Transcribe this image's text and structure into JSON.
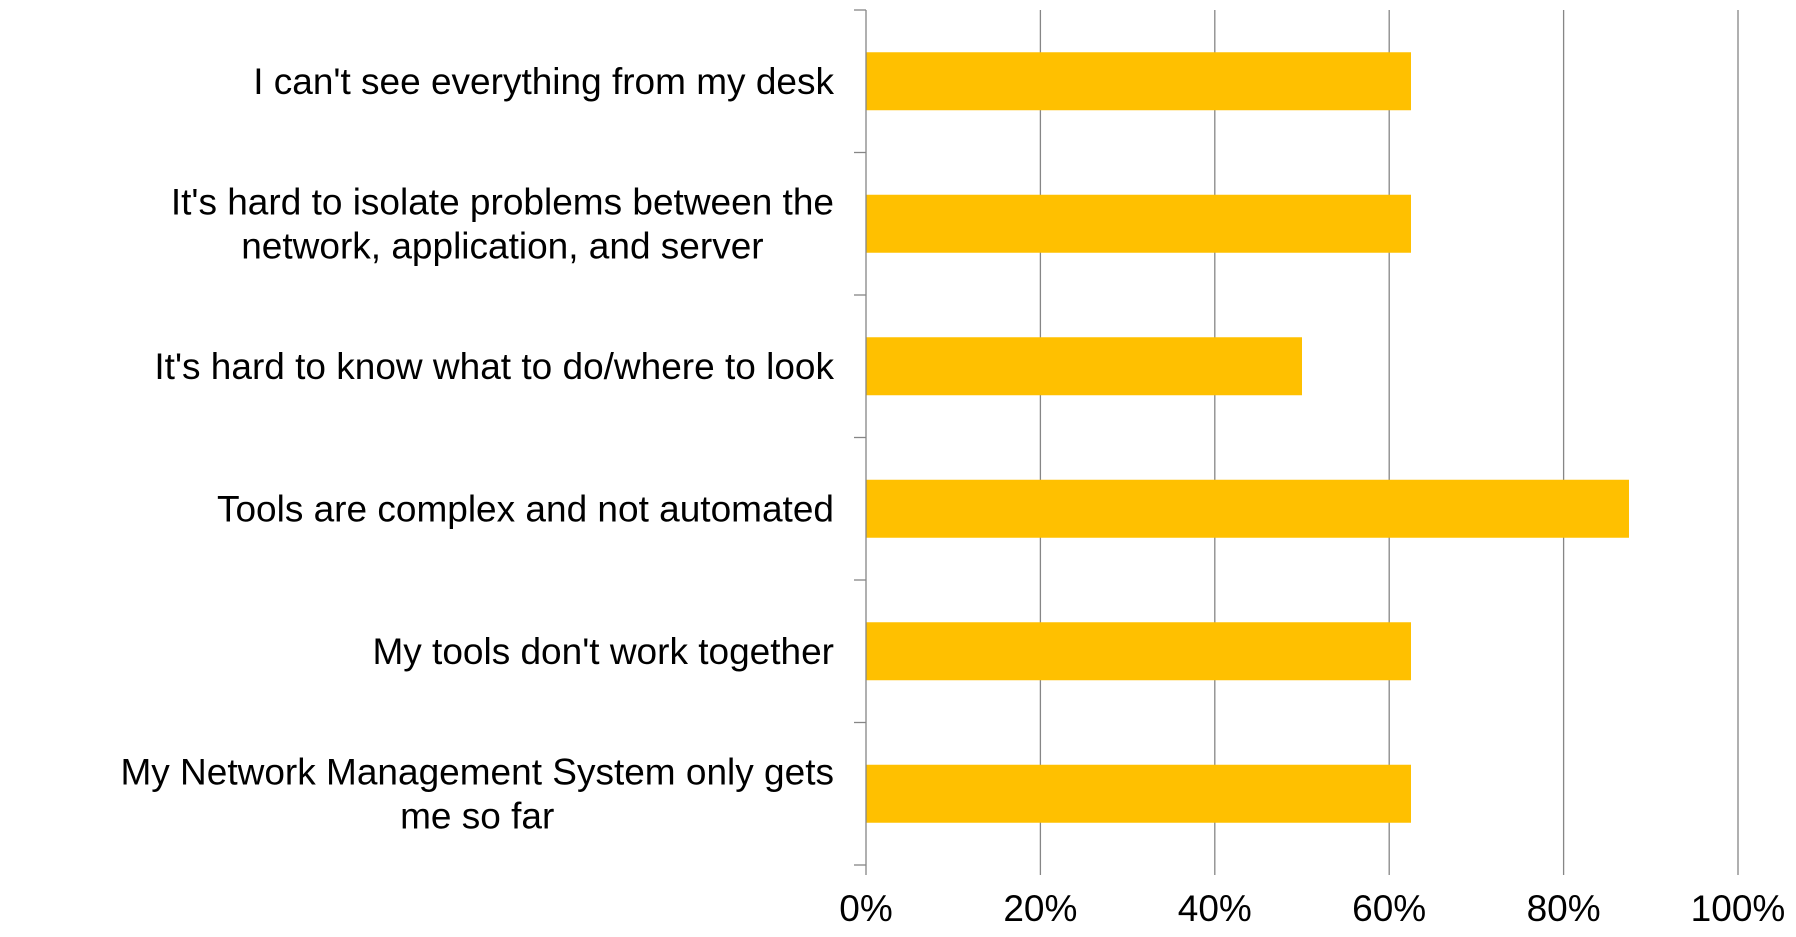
{
  "chart_data": {
    "type": "bar",
    "orientation": "horizontal",
    "title": "",
    "xlabel": "",
    "ylabel": "",
    "categories": [
      "I can't see everything from my desk",
      "It's hard to isolate problems between the network, application, and server",
      "It's hard to know what to do/where to look",
      "Tools are complex and not automated",
      "My tools don't work together",
      "My Network Management System only gets me so far"
    ],
    "category_lines": [
      [
        "I can't see everything from my desk"
      ],
      [
        "It's hard to isolate problems between the",
        "network, application, and server"
      ],
      [
        "It's hard to know what to do/where to look"
      ],
      [
        "Tools are complex and not automated"
      ],
      [
        "My tools don't work together"
      ],
      [
        "My Network Management System only gets",
        "me so far"
      ]
    ],
    "values": [
      0.625,
      0.625,
      0.5,
      0.875,
      0.625,
      0.625
    ],
    "xlim": [
      0,
      1
    ],
    "xticks": [
      0,
      0.2,
      0.4,
      0.6,
      0.8,
      1.0
    ],
    "xtick_labels": [
      "0%",
      "20%",
      "40%",
      "60%",
      "80%",
      "100%"
    ],
    "grid": true,
    "legend": "none",
    "bar_color": "#FFC000",
    "gridline_color": "#868686"
  }
}
